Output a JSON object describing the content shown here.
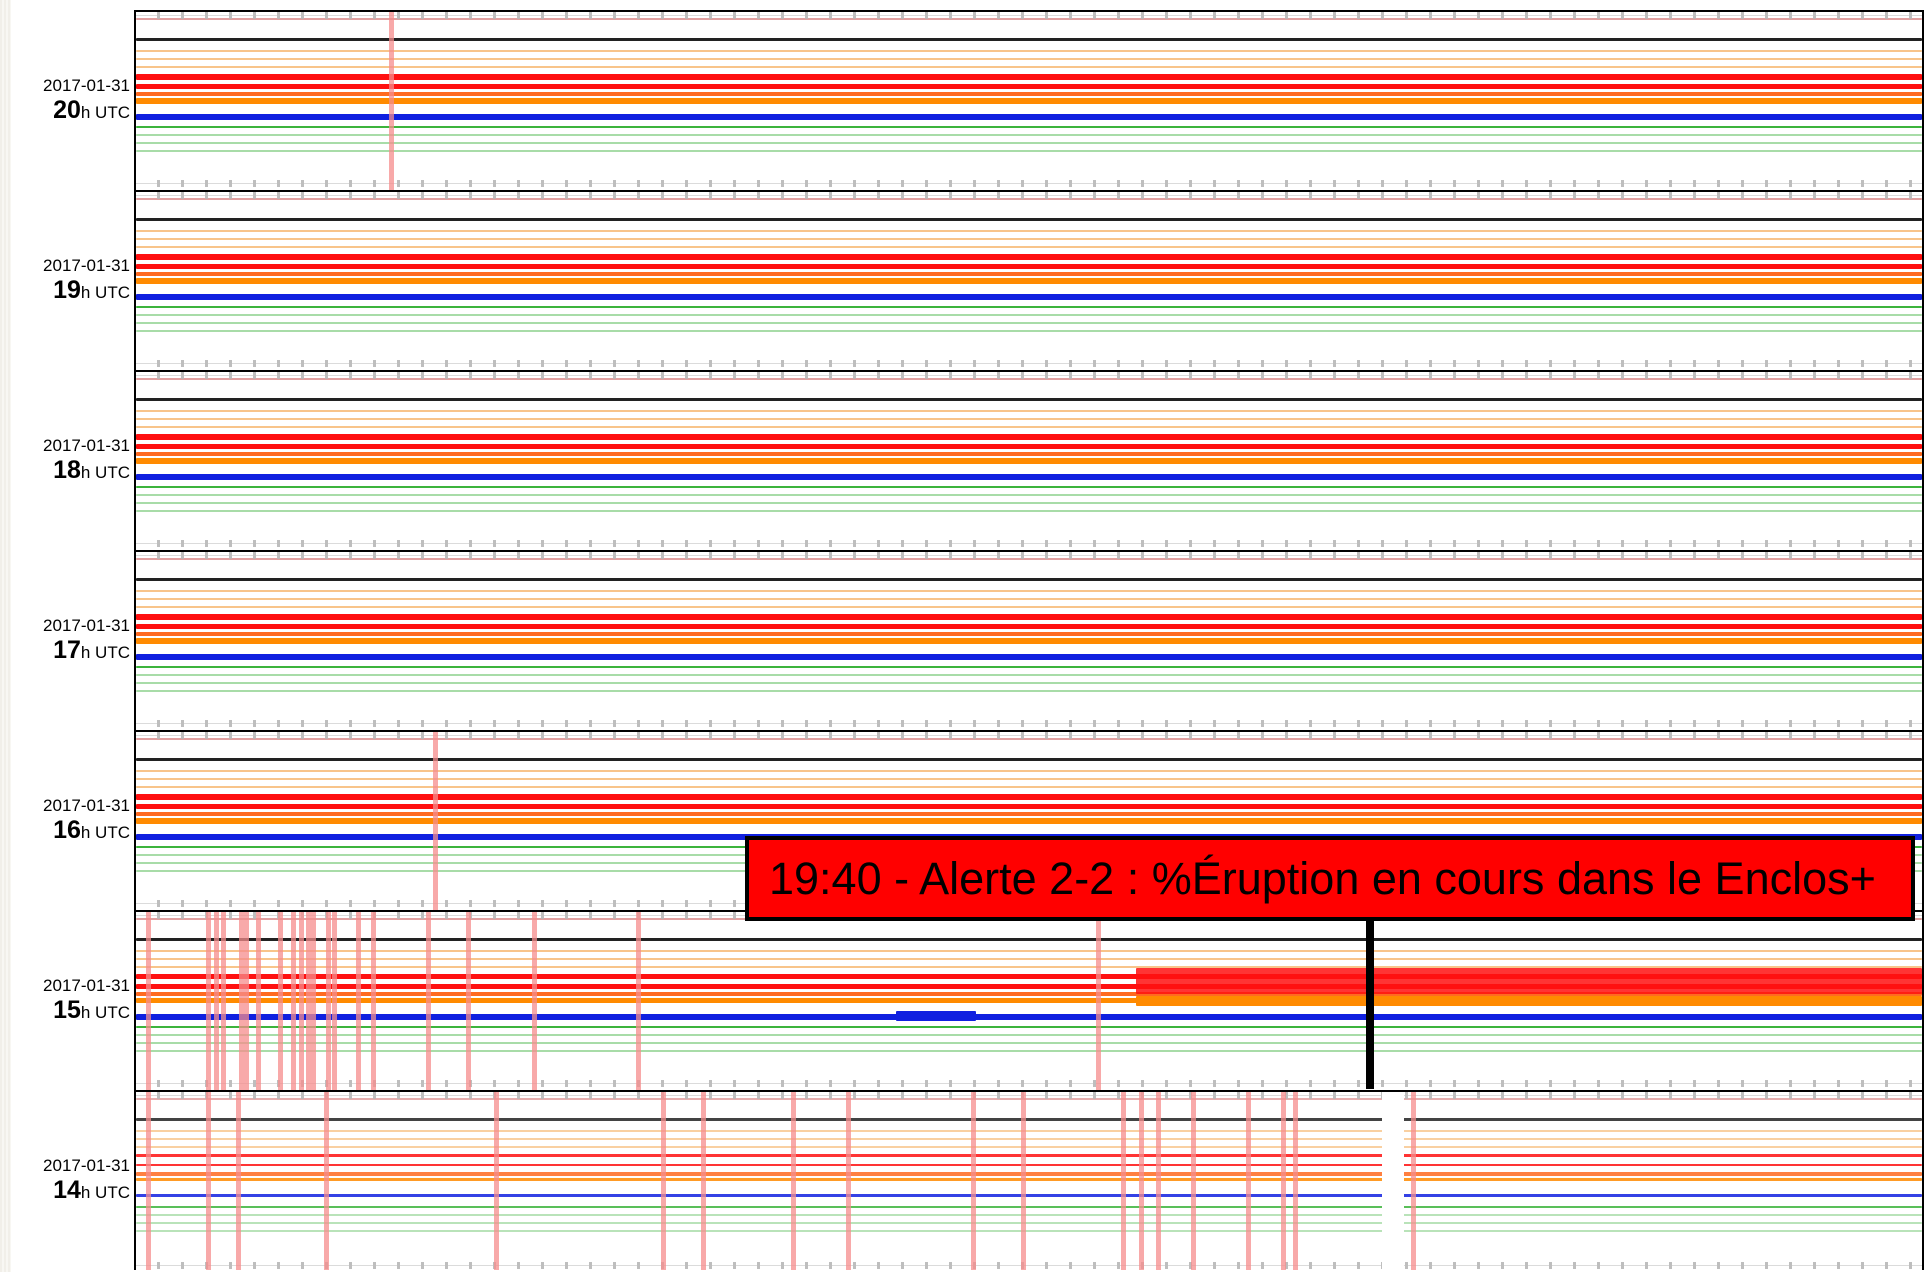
{
  "colors": {
    "black_trace": "#222222",
    "orange_light": "#f8c48a",
    "orange": "#ff8a00",
    "red": "#ff1010",
    "blue": "#1020e0",
    "green": "#3cb43c",
    "green_light": "#a8dca8",
    "spike": "#f68c8c",
    "alert_background": "#ff0000"
  },
  "rows": [
    {
      "date": "2017-01-31",
      "hour": "20",
      "unit": "h UTC",
      "activity": "steady"
    },
    {
      "date": "2017-01-31",
      "hour": "19",
      "unit": "h UTC",
      "activity": "steady"
    },
    {
      "date": "2017-01-31",
      "hour": "18",
      "unit": "h UTC",
      "activity": "steady"
    },
    {
      "date": "2017-01-31",
      "hour": "17",
      "unit": "h UTC",
      "activity": "steady"
    },
    {
      "date": "2017-01-31",
      "hour": "16",
      "unit": "h UTC",
      "activity": "steady"
    },
    {
      "date": "2017-01-31",
      "hour": "15",
      "unit": "h UTC",
      "activity": "onset"
    },
    {
      "date": "2017-01-31",
      "hour": "14",
      "unit": "h UTC",
      "activity": "quiet"
    }
  ],
  "alert": {
    "text": "19:40 - Alerte 2-2 : %Éruption en cours dans le Enclos+"
  }
}
